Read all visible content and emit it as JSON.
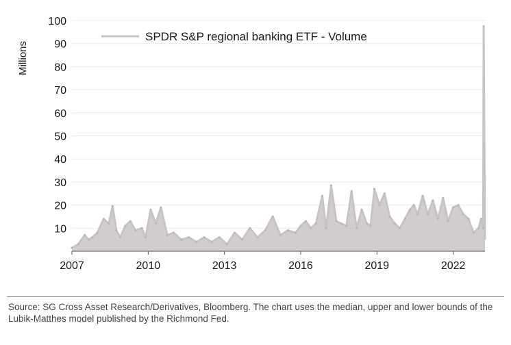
{
  "chart_data": {
    "type": "area",
    "title": "",
    "legend": [
      "SPDR S&P regional banking ETF - Volume"
    ],
    "legend_position": "top",
    "xlabel": "",
    "ylabel": "Millions",
    "xlim": [
      2007.0,
      2023.25
    ],
    "ylim": [
      0,
      100
    ],
    "x_ticks": [
      2007,
      2010,
      2013,
      2016,
      2019,
      2022
    ],
    "x_tick_labels": [
      "2007",
      "2010",
      "2013",
      "2016",
      "2019",
      "2022"
    ],
    "y_ticks": [
      10,
      20,
      30,
      40,
      50,
      60,
      70,
      80,
      90,
      100
    ],
    "y_tick_labels": [
      "10",
      "20",
      "30",
      "40",
      "50",
      "60",
      "70",
      "80",
      "90",
      "100"
    ],
    "grid": "horizontal",
    "series_color": "#c9c4c4",
    "series": [
      {
        "name": "SPDR S&P regional banking ETF - Volume",
        "x": [
          2007.0,
          2007.25,
          2007.5,
          2007.65,
          2007.8,
          2008.0,
          2008.25,
          2008.45,
          2008.6,
          2008.75,
          2008.9,
          2009.1,
          2009.3,
          2009.5,
          2009.75,
          2009.9,
          2010.1,
          2010.3,
          2010.5,
          2010.75,
          2011.0,
          2011.3,
          2011.6,
          2011.9,
          2012.2,
          2012.5,
          2012.8,
          2013.1,
          2013.4,
          2013.7,
          2014.0,
          2014.3,
          2014.6,
          2014.9,
          2015.2,
          2015.5,
          2015.8,
          2016.0,
          2016.2,
          2016.4,
          2016.6,
          2016.85,
          2017.0,
          2017.2,
          2017.4,
          2017.6,
          2017.8,
          2018.0,
          2018.2,
          2018.4,
          2018.6,
          2018.75,
          2018.9,
          2019.1,
          2019.3,
          2019.5,
          2019.7,
          2019.9,
          2020.1,
          2020.3,
          2020.45,
          2020.6,
          2020.8,
          2021.0,
          2021.2,
          2021.4,
          2021.6,
          2021.8,
          2022.0,
          2022.2,
          2022.4,
          2022.6,
          2022.8,
          2023.0,
          2023.1,
          2023.18,
          2023.2
        ],
        "values": [
          1.5,
          3,
          7,
          5,
          6,
          8,
          14,
          12,
          19.5,
          9,
          6,
          11,
          13,
          9,
          10,
          6,
          18,
          12,
          19,
          7,
          8,
          5,
          6,
          4,
          6,
          4,
          6,
          3,
          8,
          5,
          10,
          6,
          9,
          15,
          7,
          9,
          8,
          11,
          13,
          10,
          12,
          24,
          10,
          28.5,
          13,
          12,
          11,
          26,
          10,
          18,
          12,
          11,
          27,
          20,
          25,
          15,
          12,
          10,
          14,
          18,
          20,
          16,
          24,
          16,
          22,
          14,
          23,
          13,
          19,
          20,
          16,
          14,
          8,
          10,
          14,
          10,
          97.5
        ]
      }
    ]
  },
  "source_text": "Source: SG Cross Asset Research/Derivatives, Bloomberg. The chart uses the median, upper and lower bounds of the Lubik-Matthes model published by the Richmond Fed."
}
